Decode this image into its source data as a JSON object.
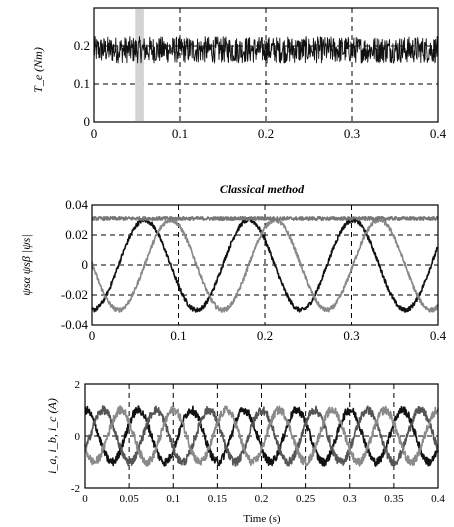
{
  "chart_data": [
    {
      "type": "line",
      "title": "",
      "xlabel": "",
      "ylabel": "T_e (Nm)",
      "xlim": [
        0,
        0.4
      ],
      "ylim": [
        0,
        0.3
      ],
      "xticks": [
        "0",
        "0.1",
        "0.2",
        "0.3",
        "0.4"
      ],
      "yticks": [
        "0",
        "0.1",
        "0.2"
      ],
      "grid": true,
      "series": [
        {
          "mean": 0.19,
          "ripple": 0.035,
          "color": "#111111"
        }
      ],
      "highlight_band": [
        0.048,
        0.058
      ]
    },
    {
      "type": "line",
      "title": "Classical method",
      "xlabel": "",
      "ylabel": "ψsα ψsβ |ψs|",
      "xlim": [
        0,
        0.4
      ],
      "ylim": [
        -0.04,
        0.04
      ],
      "xticks": [
        "0",
        "0.1",
        "0.2",
        "0.3",
        "0.4"
      ],
      "yticks": [
        "0.04",
        "0.02",
        "0",
        "-0.02",
        "-0.04"
      ],
      "grid": true,
      "series": [
        {
          "amplitude": 0.03,
          "frequency": 8.3,
          "phase": -1.6,
          "color": "#111111"
        },
        {
          "amplitude": 0.03,
          "frequency": 8.3,
          "phase": -3.17,
          "color": "#888888"
        },
        {
          "constant": 0.031,
          "color": "#777777"
        }
      ]
    },
    {
      "type": "line",
      "title": "",
      "xlabel": "Time (s)",
      "ylabel": "i_a, i_b, i_c (A)",
      "xlim": [
        0,
        0.4
      ],
      "ylim": [
        -2,
        2
      ],
      "xticks": [
        "0",
        "0.05",
        "0.1",
        "0.15",
        "0.2",
        "0.25",
        "0.3",
        "0.35",
        "0.4"
      ],
      "yticks": [
        "2",
        "0",
        "-2"
      ],
      "grid": true,
      "series": [
        {
          "amplitude": 1.0,
          "frequency": 16.7,
          "phase": 1.5,
          "color": "#111111"
        },
        {
          "amplitude": 1.0,
          "frequency": 16.7,
          "phase": -0.6,
          "color": "#555555"
        },
        {
          "amplitude": 1.0,
          "frequency": 16.7,
          "phase": 3.6,
          "color": "#8a8a8a"
        }
      ]
    }
  ]
}
